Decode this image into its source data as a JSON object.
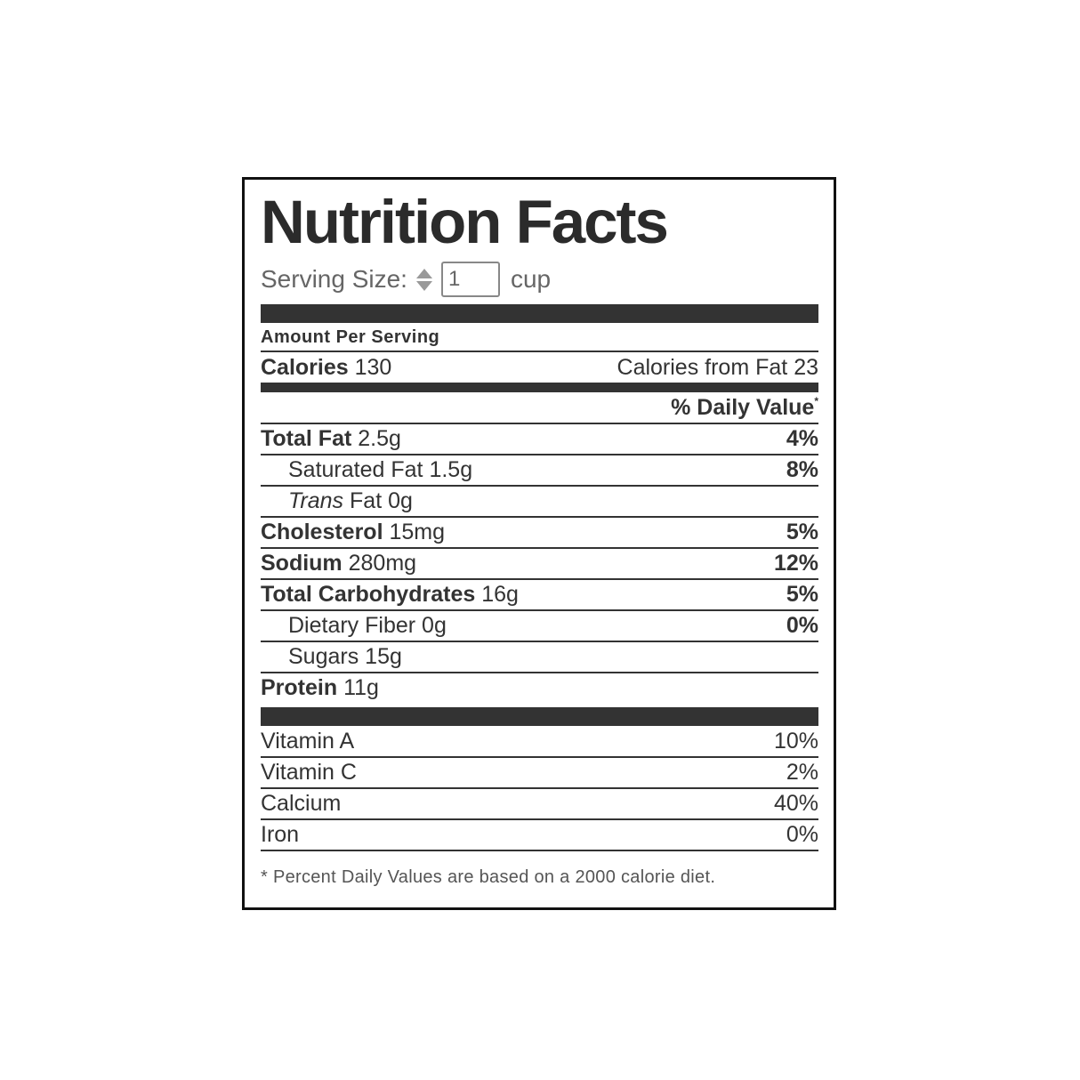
{
  "title": "Nutrition Facts",
  "serving": {
    "label": "Serving Size:",
    "value": "1",
    "unit": "cup"
  },
  "amount_per_serving": "Amount Per Serving",
  "calories": {
    "label": "Calories",
    "value": "130",
    "from_fat_label": "Calories from Fat",
    "from_fat_value": "23"
  },
  "daily_value_header": "% Daily Value",
  "daily_value_mark": "*",
  "nutrients": [
    {
      "label": "Total Fat",
      "amount": "2.5g",
      "dv": "4%"
    },
    {
      "label": "Saturated Fat",
      "amount": "1.5g",
      "dv": "8%"
    },
    {
      "label": "Trans",
      "label2": "Fat",
      "amount": "0g",
      "dv": ""
    },
    {
      "label": "Cholesterol",
      "amount": "15mg",
      "dv": "5%"
    },
    {
      "label": "Sodium",
      "amount": "280mg",
      "dv": "12%"
    },
    {
      "label": "Total Carbohydrates",
      "amount": "16g",
      "dv": "5%"
    },
    {
      "label": "Dietary Fiber",
      "amount": "0g",
      "dv": "0%"
    },
    {
      "label": "Sugars",
      "amount": "15g",
      "dv": ""
    },
    {
      "label": "Protein",
      "amount": "11g",
      "dv": ""
    }
  ],
  "vitamins": [
    {
      "label": "Vitamin A",
      "dv": "10%"
    },
    {
      "label": "Vitamin C",
      "dv": "2%"
    },
    {
      "label": "Calcium",
      "dv": "40%"
    },
    {
      "label": "Iron",
      "dv": "0%"
    }
  ],
  "footnote": "* Percent Daily Values are based on a 2000 calorie diet."
}
